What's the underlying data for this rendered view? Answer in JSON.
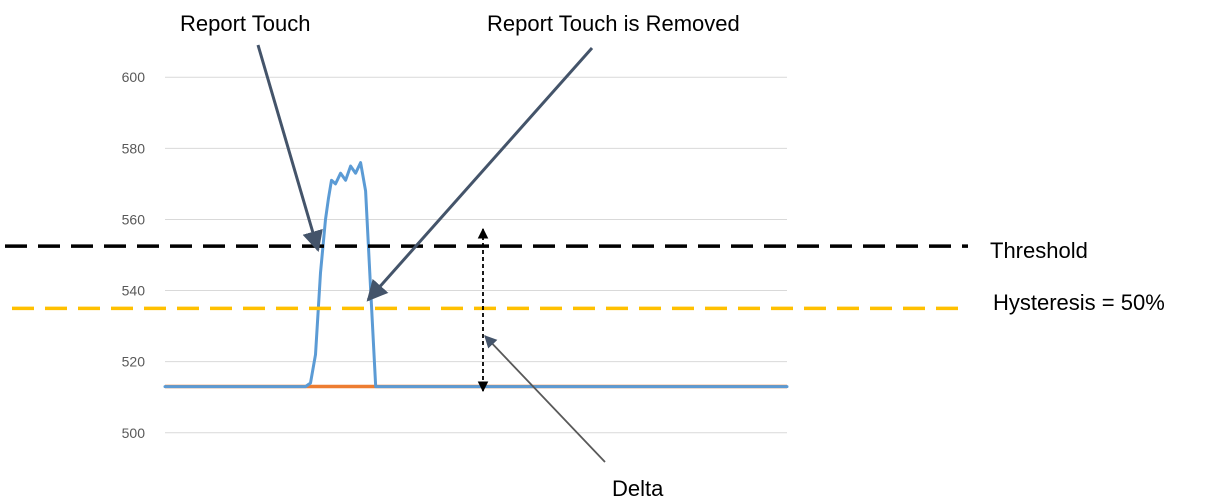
{
  "chart_data": {
    "type": "line",
    "title": "",
    "xlabel": "",
    "ylabel": "",
    "ylim": [
      496,
      604
    ],
    "y_ticks": [
      500,
      520,
      540,
      560,
      580,
      600
    ],
    "x_ticks_visible": false,
    "grid": "horizontal",
    "legend": "none",
    "baseline_value": 513,
    "threshold_value": 552.5,
    "hysteresis_value": 535,
    "series": [
      {
        "color": "#5b9bd5",
        "x": [
          0,
          140,
          145,
          150,
          155,
          160,
          163,
          166,
          170,
          175,
          180,
          185,
          190,
          195,
          200,
          205,
          210,
          215,
          220,
          225,
          230,
          235,
          240,
          245,
          250,
          255,
          260,
          265,
          270,
          275,
          280,
          285,
          290,
          295,
          300,
          305,
          310,
          315,
          320,
          325,
          330,
          335,
          340,
          345,
          350,
          355,
          360,
          365,
          370,
          375,
          380,
          385,
          390,
          395,
          400,
          405,
          410,
          415,
          420,
          425,
          430,
          435,
          440,
          445,
          450,
          455,
          460,
          465,
          470,
          475,
          480,
          485,
          490,
          495,
          500,
          505,
          510,
          515,
          520,
          525,
          530,
          535,
          540,
          545,
          550,
          555,
          560,
          565,
          570,
          575,
          580,
          585,
          590,
          595,
          600,
          605,
          610,
          615,
          620
        ],
        "values": [
          513,
          513,
          514,
          522,
          545,
          560,
          566,
          571,
          570,
          573,
          571,
          575,
          573,
          576,
          568,
          540,
          513,
          513,
          513,
          513,
          513,
          513,
          513,
          513,
          513,
          513,
          513,
          513,
          513,
          513,
          513,
          513,
          513,
          513,
          513,
          513,
          513,
          513,
          513,
          513,
          513,
          513,
          513,
          513,
          513,
          513,
          513,
          513,
          513,
          513,
          513,
          513,
          513,
          513,
          513,
          513,
          513,
          513,
          513,
          513,
          513,
          513,
          513,
          513,
          513,
          513,
          513,
          513,
          513,
          513,
          513,
          513,
          513,
          513,
          513,
          513,
          513,
          513,
          513,
          513,
          513,
          513,
          513,
          513,
          513,
          513,
          513,
          513,
          513,
          513,
          513,
          513,
          513,
          513,
          513,
          513,
          513,
          513,
          513
        ]
      }
    ],
    "annotations": {
      "report_touch": "Report Touch",
      "report_touch_removed": "Report Touch is Removed",
      "threshold": "Threshold",
      "hysteresis": "Hysteresis = 50%",
      "delta": "Delta"
    },
    "colors": {
      "signal": "#5b9bd5",
      "baseline": "#ed7d31",
      "threshold": "#000000",
      "hysteresis": "#ffc000",
      "grid": "#d9d9d9",
      "arrow": "#44546a"
    }
  }
}
